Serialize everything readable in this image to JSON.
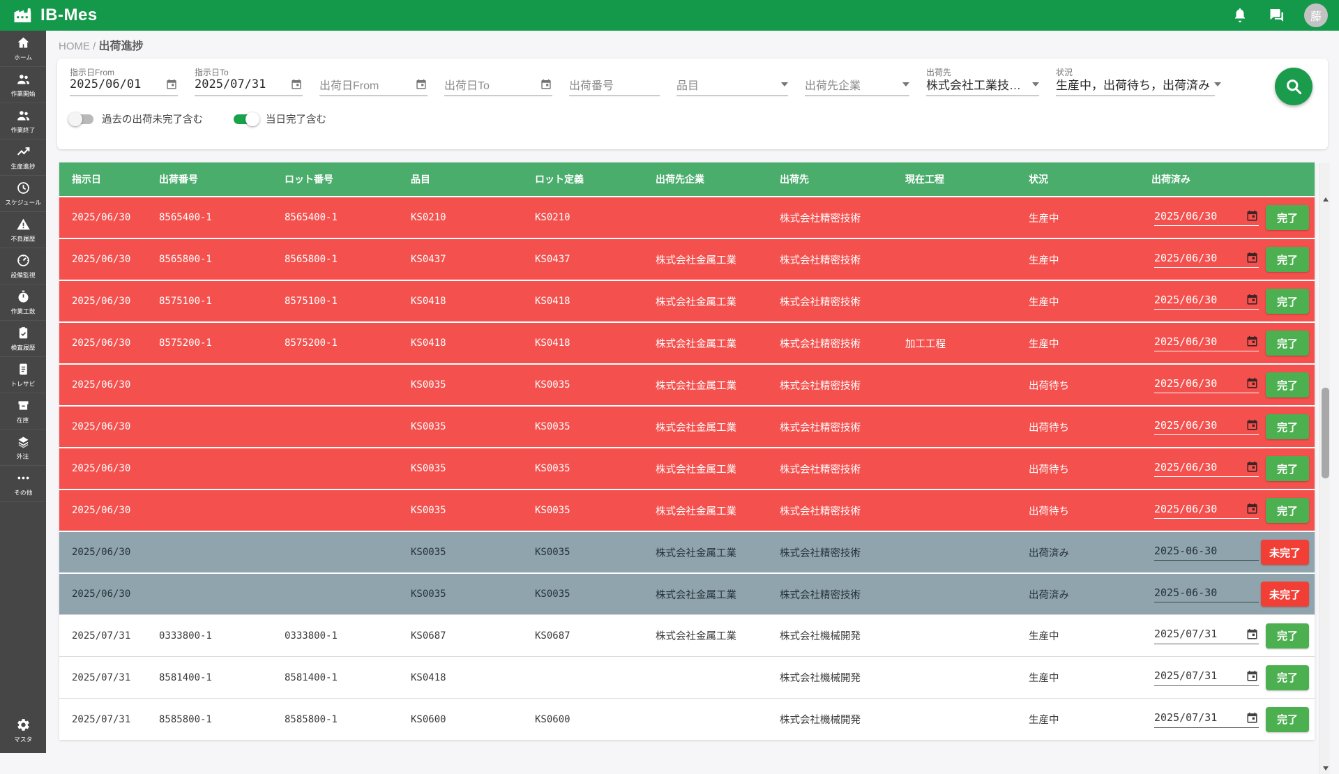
{
  "app": {
    "title": "IB-Mes"
  },
  "topbar": {
    "avatar_text": "藤"
  },
  "sidebar": {
    "items": [
      {
        "name": "home",
        "icon": "home",
        "label": "ホーム"
      },
      {
        "name": "work-start",
        "icon": "people",
        "label": "作業開始"
      },
      {
        "name": "work-end",
        "icon": "people",
        "label": "作業終了"
      },
      {
        "name": "production-progress",
        "icon": "trend",
        "label": "生産進捗"
      },
      {
        "name": "schedule",
        "icon": "clock",
        "label": "スケジュール"
      },
      {
        "name": "defect-history",
        "icon": "warning",
        "label": "不良履歴"
      },
      {
        "name": "equipment-monitor",
        "icon": "gauge",
        "label": "設備監視"
      },
      {
        "name": "work-hours",
        "icon": "timer",
        "label": "作業工数"
      },
      {
        "name": "inspection-history",
        "icon": "clipboard-check",
        "label": "検査履歴"
      },
      {
        "name": "traceability",
        "icon": "document",
        "label": "トレサビ"
      },
      {
        "name": "inventory",
        "icon": "inventory",
        "label": "在庫"
      },
      {
        "name": "outsourcing",
        "icon": "layers",
        "label": "外注"
      },
      {
        "name": "others",
        "icon": "ellipsis",
        "label": "その他"
      }
    ],
    "bottom_item": {
      "name": "master",
      "icon": "gear",
      "label": "マスタ"
    }
  },
  "breadcrumb": {
    "home": "HOME",
    "separator": "/",
    "current": "出荷進捗"
  },
  "filters": {
    "shiji_from": {
      "label": "指示日From",
      "value": "2025/06/01"
    },
    "shiji_to": {
      "label": "指示日To",
      "value": "2025/07/31"
    },
    "shukka_from": {
      "placeholder": "出荷日From"
    },
    "shukka_to": {
      "placeholder": "出荷日To"
    },
    "shukka_no": {
      "placeholder": "出荷番号"
    },
    "hinmoku": {
      "placeholder": "品目"
    },
    "dest_company": {
      "placeholder": "出荷先企業"
    },
    "dest": {
      "label": "出荷先",
      "value": "株式会社工業技…"
    },
    "status": {
      "label": "状況",
      "value": "生産中，出荷待ち，出荷済み"
    },
    "toggle_past": {
      "label": "過去の出荷未完了含む",
      "on": false
    },
    "toggle_today": {
      "label": "当日完了含む",
      "on": true
    }
  },
  "table": {
    "headers": [
      "指示日",
      "出荷番号",
      "ロット番号",
      "品目",
      "ロット定義",
      "出荷先企業",
      "出荷先",
      "現在工程",
      "状況",
      "出荷済み"
    ],
    "rows": [
      {
        "variant": "overdue",
        "cells": [
          "2025/06/30",
          "8565400-1",
          "8565400-1",
          "KS0210",
          "KS0210",
          "",
          "株式会社精密技術",
          "",
          "生産中"
        ],
        "ship_date": "2025/06/30",
        "calendar_icon": true,
        "action": "完了"
      },
      {
        "variant": "overdue",
        "cells": [
          "2025/06/30",
          "8565800-1",
          "8565800-1",
          "KS0437",
          "KS0437",
          "株式会社金属工業",
          "株式会社精密技術",
          "",
          "生産中"
        ],
        "ship_date": "2025/06/30",
        "calendar_icon": true,
        "action": "完了"
      },
      {
        "variant": "overdue",
        "cells": [
          "2025/06/30",
          "8575100-1",
          "8575100-1",
          "KS0418",
          "KS0418",
          "株式会社金属工業",
          "株式会社精密技術",
          "",
          "生産中"
        ],
        "ship_date": "2025/06/30",
        "calendar_icon": true,
        "action": "完了"
      },
      {
        "variant": "overdue",
        "cells": [
          "2025/06/30",
          "8575200-1",
          "8575200-1",
          "KS0418",
          "KS0418",
          "株式会社金属工業",
          "株式会社精密技術",
          "加工工程",
          "生産中"
        ],
        "ship_date": "2025/06/30",
        "calendar_icon": true,
        "action": "完了"
      },
      {
        "variant": "overdue",
        "cells": [
          "2025/06/30",
          "",
          "",
          "KS0035",
          "KS0035",
          "株式会社金属工業",
          "株式会社精密技術",
          "",
          "出荷待ち"
        ],
        "ship_date": "2025/06/30",
        "calendar_icon": true,
        "action": "完了"
      },
      {
        "variant": "overdue",
        "cells": [
          "2025/06/30",
          "",
          "",
          "KS0035",
          "KS0035",
          "株式会社金属工業",
          "株式会社精密技術",
          "",
          "出荷待ち"
        ],
        "ship_date": "2025/06/30",
        "calendar_icon": true,
        "action": "完了"
      },
      {
        "variant": "overdue",
        "cells": [
          "2025/06/30",
          "",
          "",
          "KS0035",
          "KS0035",
          "株式会社金属工業",
          "株式会社精密技術",
          "",
          "出荷待ち"
        ],
        "ship_date": "2025/06/30",
        "calendar_icon": true,
        "action": "完了"
      },
      {
        "variant": "overdue",
        "cells": [
          "2025/06/30",
          "",
          "",
          "KS0035",
          "KS0035",
          "株式会社金属工業",
          "株式会社精密技術",
          "",
          "出荷待ち"
        ],
        "ship_date": "2025/06/30",
        "calendar_icon": true,
        "action": "完了"
      },
      {
        "variant": "shipped",
        "cells": [
          "2025/06/30",
          "",
          "",
          "KS0035",
          "KS0035",
          "株式会社金属工業",
          "株式会社精密技術",
          "",
          "出荷済み"
        ],
        "ship_date": "2025-06-30",
        "calendar_icon": false,
        "action": "未完了"
      },
      {
        "variant": "shipped",
        "cells": [
          "2025/06/30",
          "",
          "",
          "KS0035",
          "KS0035",
          "株式会社金属工業",
          "株式会社精密技術",
          "",
          "出荷済み"
        ],
        "ship_date": "2025-06-30",
        "calendar_icon": false,
        "action": "未完了"
      },
      {
        "variant": "normal",
        "cells": [
          "2025/07/31",
          "0333800-1",
          "0333800-1",
          "KS0687",
          "KS0687",
          "株式会社金属工業",
          "株式会社機械開発",
          "",
          "生産中"
        ],
        "ship_date": "2025/07/31",
        "calendar_icon": true,
        "action": "完了"
      },
      {
        "variant": "normal",
        "cells": [
          "2025/07/31",
          "8581400-1",
          "8581400-1",
          "KS0418",
          "",
          "",
          "株式会社機械開発",
          "",
          "生産中"
        ],
        "ship_date": "2025/07/31",
        "calendar_icon": true,
        "action": "完了"
      },
      {
        "variant": "normal",
        "cells": [
          "2025/07/31",
          "8585800-1",
          "8585800-1",
          "KS0600",
          "KS0600",
          "",
          "株式会社機械開発",
          "",
          "生産中"
        ],
        "ship_date": "2025/07/31",
        "calendar_icon": true,
        "action": "完了"
      }
    ]
  },
  "colors": {
    "topbar_green": "#14994a",
    "table_header_green": "#4aad6c",
    "row_overdue_red": "#f4514e",
    "row_shipped_gray": "#90a4ae",
    "button_complete_green": "#4caf50",
    "button_incomplete_red": "#f23f36",
    "toggle_on_green": "#18a34b",
    "sidebar_gray": "#464646"
  }
}
